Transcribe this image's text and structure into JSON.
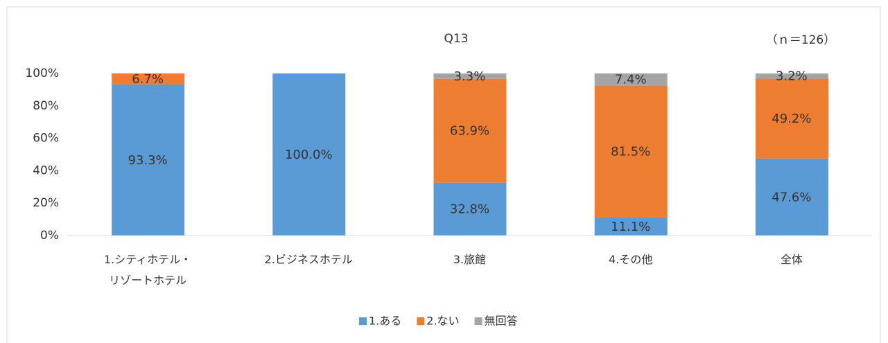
{
  "chart_data": {
    "type": "stacked_bar",
    "title": "Q13",
    "annotation": "（ｎ＝126）",
    "categories": [
      "1.シティホテル・\nリゾートホテル",
      "2.ビジネスホテル",
      "3.旅館",
      "4.その他",
      "全体"
    ],
    "series": [
      {
        "name": "1.ある",
        "color": "#5b9bd5",
        "values": [
          93.3,
          100.0,
          32.8,
          11.1,
          47.6
        ],
        "value_labels": [
          "93.3%",
          "100.0%",
          "32.8%",
          "11.1%",
          "47.6%"
        ]
      },
      {
        "name": "2.ない",
        "color": "#ed7d31",
        "values": [
          6.7,
          null,
          63.9,
          81.5,
          49.2
        ],
        "value_labels": [
          "6.7%",
          null,
          "63.9%",
          "81.5%",
          "49.2%"
        ]
      },
      {
        "name": "無回答",
        "color": "#a5a5a5",
        "values": [
          null,
          null,
          3.3,
          7.4,
          3.2
        ],
        "value_labels": [
          null,
          null,
          "3.3%",
          "7.4%",
          "3.2%"
        ]
      }
    ],
    "ylim": [
      0,
      100
    ],
    "yticks": [
      {
        "value": 0,
        "label": "0%"
      },
      {
        "value": 20,
        "label": "20%"
      },
      {
        "value": 40,
        "label": "40%"
      },
      {
        "value": 60,
        "label": "60%"
      },
      {
        "value": 80,
        "label": "80%"
      },
      {
        "value": 100,
        "label": "100%"
      }
    ],
    "grid": false,
    "legend": "bottom"
  }
}
